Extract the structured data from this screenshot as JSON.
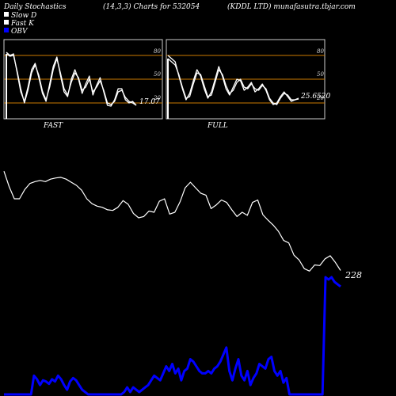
{
  "header": {
    "left": "Daily Stochastics",
    "center": "(14,3,3) Charts for 532054",
    "right": "(KDDL LTD) munafasutra.tbjar.com"
  },
  "legend": [
    {
      "label": "Slow  D",
      "color": "#ffffff"
    },
    {
      "label": "Fast K",
      "color": "#ffffff"
    },
    {
      "label": "OBV",
      "color": "#0000ff"
    }
  ],
  "colors": {
    "background": "#000000",
    "panel_border": "#cccccc",
    "level_lines": "#cc7a00",
    "stoch_lines": "#ffffff",
    "price_line": "#ffffff",
    "obv_line": "#0000ff"
  },
  "chart_data": [
    {
      "type": "line",
      "panel": "FAST",
      "xlabel": "FAST",
      "ylim": [
        0,
        100
      ],
      "levels": [
        20,
        50,
        80
      ],
      "tick_labels": [
        "80",
        "50",
        "20"
      ],
      "last_value_label": "17.07",
      "series": [
        {
          "values": [
            82,
            79,
            80,
            60,
            38,
            20,
            36,
            58,
            68,
            55,
            35,
            24,
            40,
            62,
            76,
            58,
            38,
            30,
            46,
            58,
            52,
            36,
            40,
            50,
            34,
            40,
            48,
            36,
            20,
            18,
            22,
            34,
            36,
            27,
            22,
            20,
            17
          ]
        },
        {
          "values": [
            84,
            80,
            82,
            58,
            34,
            22,
            40,
            62,
            70,
            52,
            32,
            22,
            44,
            66,
            78,
            55,
            34,
            28,
            50,
            62,
            50,
            32,
            44,
            54,
            30,
            42,
            52,
            34,
            17,
            16,
            24,
            38,
            38,
            24,
            20,
            22,
            17
          ]
        }
      ]
    },
    {
      "type": "line",
      "panel": "FULL",
      "xlabel": "FULL",
      "ylim": [
        0,
        100
      ],
      "levels": [
        20,
        50,
        80
      ],
      "tick_labels": [
        "80",
        "50",
        "20"
      ],
      "last_value_label": "25.6520",
      "series": [
        {
          "values": [
            76,
            72,
            68,
            56,
            40,
            26,
            28,
            44,
            58,
            56,
            42,
            28,
            30,
            46,
            62,
            56,
            42,
            32,
            36,
            46,
            50,
            40,
            38,
            44,
            38,
            36,
            42,
            38,
            26,
            20,
            18,
            26,
            32,
            30,
            24,
            24,
            25
          ]
        },
        {
          "values": [
            80,
            76,
            72,
            54,
            38,
            24,
            32,
            48,
            62,
            54,
            38,
            26,
            34,
            50,
            66,
            54,
            38,
            30,
            40,
            50,
            48,
            36,
            40,
            46,
            34,
            38,
            44,
            36,
            24,
            18,
            20,
            28,
            34,
            28,
            22,
            24,
            26
          ]
        }
      ]
    },
    {
      "type": "line",
      "panel": "price",
      "last_value_label": "228",
      "series": [
        {
          "values": [
            244.5,
            242,
            240,
            240,
            241.5,
            242.5,
            242.8,
            243,
            242.8,
            243.2,
            243.4,
            243.5,
            243.2,
            242.7,
            242.2,
            241.4,
            240,
            239.2,
            238.8,
            238.6,
            238.2,
            238.1,
            238.6,
            239.7,
            239.1,
            237.6,
            236.9,
            237.1,
            238,
            237.8,
            239.6,
            240,
            237.5,
            237.8,
            239.5,
            241.8,
            242.7,
            241.8,
            240.9,
            240.6,
            238.4,
            239,
            239.8,
            239.4,
            238.2,
            237.1,
            237.8,
            237.3,
            239.4,
            239.8,
            237.4,
            236.5,
            235.7,
            234.7,
            233.2,
            232.8,
            230.8,
            230,
            228.6,
            228.2,
            229.2,
            229.1,
            230.2,
            230.7,
            229.6,
            228.3
          ]
        }
      ]
    },
    {
      "type": "line",
      "panel": "obv",
      "series": [
        {
          "values": [
            0,
            0,
            0,
            0,
            0,
            0,
            0,
            0,
            0,
            0,
            16,
            13,
            8,
            12,
            11,
            9,
            13,
            11,
            16,
            13,
            8,
            4,
            11,
            14,
            12,
            8,
            4,
            2,
            0,
            0,
            0,
            0,
            0,
            0,
            0,
            0,
            0,
            0,
            0,
            0,
            2,
            6,
            2,
            6,
            4,
            2,
            4,
            6,
            8,
            12,
            16,
            14,
            12,
            18,
            24,
            20,
            26,
            18,
            22,
            12,
            20,
            22,
            30,
            28,
            24,
            20,
            18,
            18,
            20,
            18,
            22,
            24,
            28,
            34,
            40,
            20,
            12,
            22,
            30,
            16,
            12,
            20,
            8,
            14,
            18,
            26,
            24,
            22,
            30,
            32,
            20,
            16,
            20,
            10,
            14,
            0,
            0,
            0,
            0,
            0,
            0,
            0,
            0,
            0,
            0,
            0,
            0,
            100,
            98,
            100,
            96,
            94,
            92
          ]
        }
      ]
    }
  ]
}
